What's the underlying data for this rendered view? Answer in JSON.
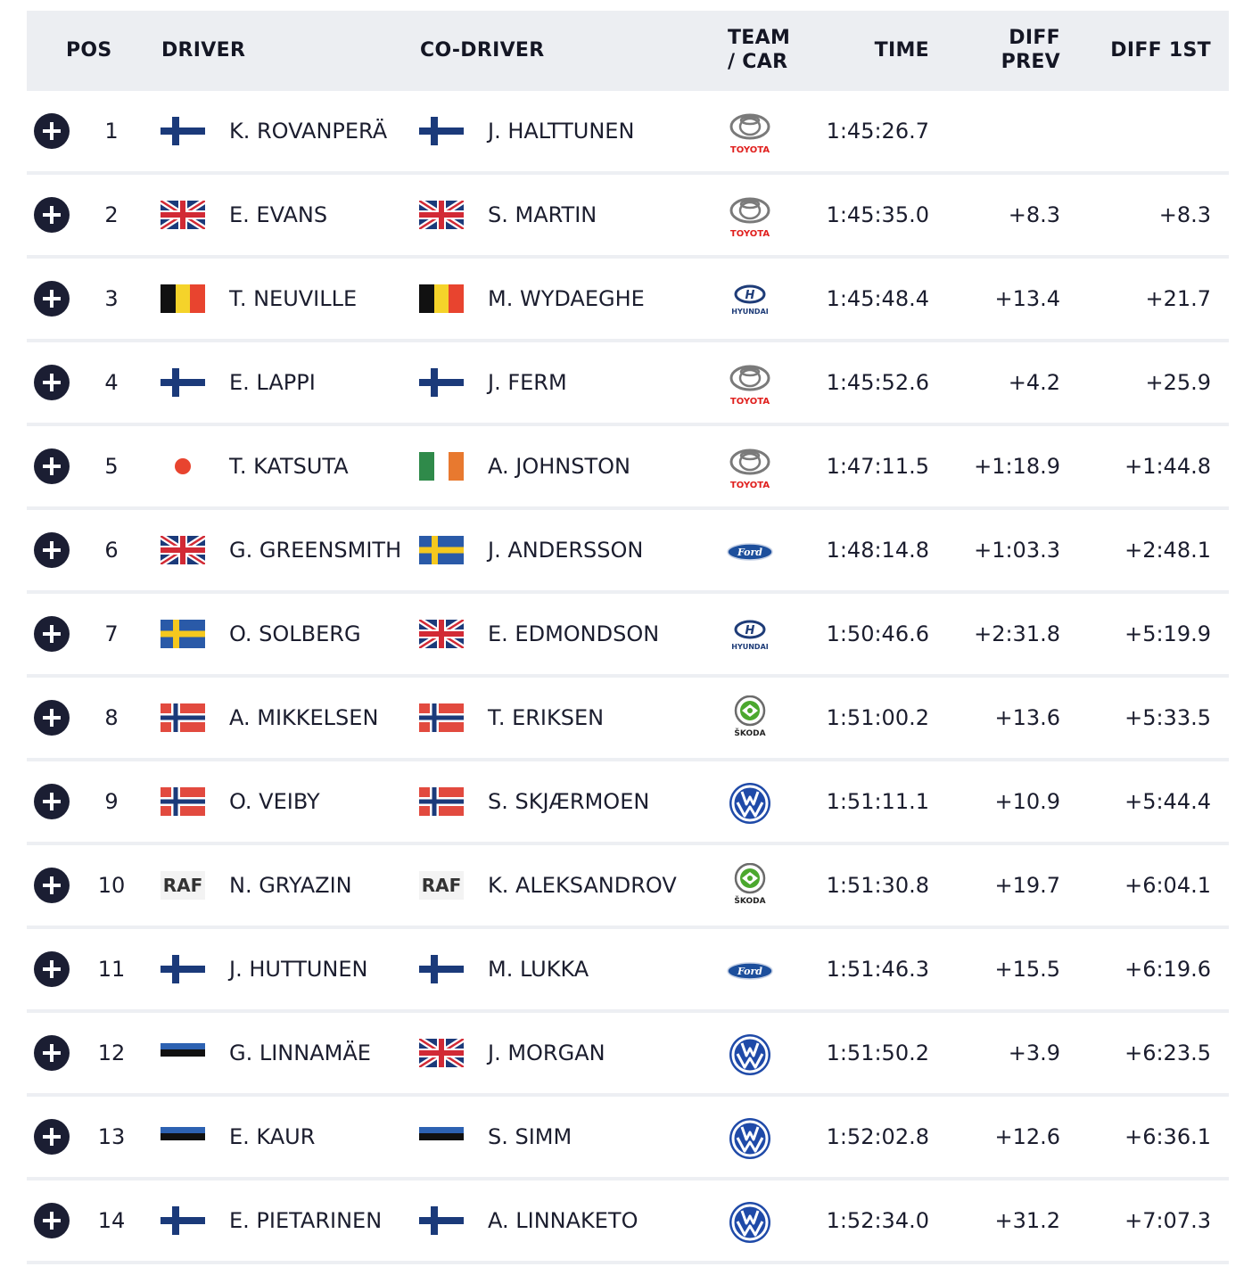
{
  "header": {
    "pos": "POS",
    "driver": "DRIVER",
    "codriver": "CO-DRIVER",
    "team_line1": "TEAM",
    "team_line2": "/ CAR",
    "time": "TIME",
    "diffprev_line1": "DIFF",
    "diffprev_line2": "PREV",
    "diff1st": "DIFF 1ST"
  },
  "rows": [
    {
      "pos": "1",
      "driver_flag": "fin",
      "driver": "K. ROVANPERÄ",
      "codriver_flag": "fin",
      "codriver": "J. HALTTUNEN",
      "team": "toyota",
      "time": "1:45:26.7",
      "diff_prev": "",
      "diff_1st": ""
    },
    {
      "pos": "2",
      "driver_flag": "gbr",
      "driver": "E. EVANS",
      "codriver_flag": "gbr",
      "codriver": "S. MARTIN",
      "team": "toyota",
      "time": "1:45:35.0",
      "diff_prev": "+8.3",
      "diff_1st": "+8.3"
    },
    {
      "pos": "3",
      "driver_flag": "bel",
      "driver": "T. NEUVILLE",
      "codriver_flag": "bel",
      "codriver": "M. WYDAEGHE",
      "team": "hyundai",
      "time": "1:45:48.4",
      "diff_prev": "+13.4",
      "diff_1st": "+21.7"
    },
    {
      "pos": "4",
      "driver_flag": "fin",
      "driver": "E. LAPPI",
      "codriver_flag": "fin",
      "codriver": "J. FERM",
      "team": "toyota",
      "time": "1:45:52.6",
      "diff_prev": "+4.2",
      "diff_1st": "+25.9"
    },
    {
      "pos": "5",
      "driver_flag": "jpn",
      "driver": "T. KATSUTA",
      "codriver_flag": "irl",
      "codriver": "A. JOHNSTON",
      "team": "toyota",
      "time": "1:47:11.5",
      "diff_prev": "+1:18.9",
      "diff_1st": "+1:44.8"
    },
    {
      "pos": "6",
      "driver_flag": "gbr",
      "driver": "G. GREENSMITH",
      "codriver_flag": "swe",
      "codriver": "J. ANDERSSON",
      "team": "ford",
      "time": "1:48:14.8",
      "diff_prev": "+1:03.3",
      "diff_1st": "+2:48.1"
    },
    {
      "pos": "7",
      "driver_flag": "swe",
      "driver": "O. SOLBERG",
      "codriver_flag": "gbr",
      "codriver": "E. EDMONDSON",
      "team": "hyundai",
      "time": "1:50:46.6",
      "diff_prev": "+2:31.8",
      "diff_1st": "+5:19.9"
    },
    {
      "pos": "8",
      "driver_flag": "nor",
      "driver": "A. MIKKELSEN",
      "codriver_flag": "nor",
      "codriver": "T. ERIKSEN",
      "team": "skoda",
      "time": "1:51:00.2",
      "diff_prev": "+13.6",
      "diff_1st": "+5:33.5"
    },
    {
      "pos": "9",
      "driver_flag": "nor",
      "driver": "O. VEIBY",
      "codriver_flag": "nor",
      "codriver": "S. SKJÆRMOEN",
      "team": "vw",
      "time": "1:51:11.1",
      "diff_prev": "+10.9",
      "diff_1st": "+5:44.4"
    },
    {
      "pos": "10",
      "driver_flag": "raf",
      "driver": "N. GRYAZIN",
      "codriver_flag": "raf",
      "codriver": "K. ALEKSANDROV",
      "team": "skoda",
      "time": "1:51:30.8",
      "diff_prev": "+19.7",
      "diff_1st": "+6:04.1"
    },
    {
      "pos": "11",
      "driver_flag": "fin",
      "driver": "J. HUTTUNEN",
      "codriver_flag": "fin",
      "codriver": "M. LUKKA",
      "team": "ford",
      "time": "1:51:46.3",
      "diff_prev": "+15.5",
      "diff_1st": "+6:19.6"
    },
    {
      "pos": "12",
      "driver_flag": "est",
      "driver": "G. LINNAMÄE",
      "codriver_flag": "gbr",
      "codriver": "J. MORGAN",
      "team": "vw",
      "time": "1:51:50.2",
      "diff_prev": "+3.9",
      "diff_1st": "+6:23.5"
    },
    {
      "pos": "13",
      "driver_flag": "est",
      "driver": "E. KAUR",
      "codriver_flag": "est",
      "codriver": "S. SIMM",
      "team": "vw",
      "time": "1:52:02.8",
      "diff_prev": "+12.6",
      "diff_1st": "+6:36.1"
    },
    {
      "pos": "14",
      "driver_flag": "fin",
      "driver": "E. PIETARINEN",
      "codriver_flag": "fin",
      "codriver": "A. LINNAKETO",
      "team": "vw",
      "time": "1:52:34.0",
      "diff_prev": "+31.2",
      "diff_1st": "+7:07.3"
    }
  ],
  "logo_text": {
    "toyota": "TOYOTA",
    "hyundai": "HYUNDAI",
    "skoda": "ŠKODA",
    "raf": "RAF"
  },
  "colors": {
    "header_bg": "#eceef2",
    "expand_button": "#1b1e33",
    "row_divider": "#edeff3",
    "toyota_red": "#e0201e",
    "hyundai_blue": "#1e3c78",
    "ford_blue": "#1d4f9c",
    "skoda_green": "#4ba82e",
    "vw_blue": "#1f4aa8"
  }
}
